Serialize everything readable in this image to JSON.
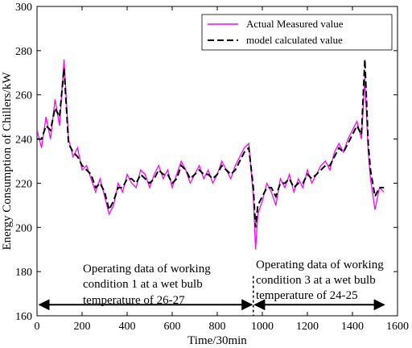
{
  "chart_data": {
    "type": "line",
    "xlabel": "Time/30min",
    "ylabel": "Energy Consumption of Chillers/kW",
    "xlim": [
      0,
      1600
    ],
    "ylim": [
      160,
      300
    ],
    "xticks": [
      0,
      200,
      400,
      600,
      800,
      1000,
      1200,
      1400,
      1600
    ],
    "yticks": [
      160,
      180,
      200,
      220,
      240,
      260,
      280,
      300
    ],
    "legend_position": "top-right",
    "colors": {
      "actual": "#ff00ff",
      "model": "#000000"
    },
    "series": [
      {
        "name": "Actual Measured value",
        "style": "solid",
        "x": [
          0,
          20,
          40,
          60,
          80,
          100,
          120,
          140,
          160,
          180,
          200,
          220,
          240,
          260,
          280,
          300,
          320,
          340,
          360,
          380,
          400,
          420,
          440,
          460,
          480,
          500,
          520,
          540,
          560,
          580,
          600,
          620,
          640,
          660,
          680,
          700,
          720,
          740,
          760,
          780,
          800,
          820,
          840,
          860,
          880,
          900,
          920,
          940,
          960,
          970,
          980,
          1000,
          1020,
          1040,
          1060,
          1080,
          1100,
          1120,
          1140,
          1160,
          1180,
          1200,
          1220,
          1240,
          1260,
          1280,
          1300,
          1320,
          1340,
          1360,
          1380,
          1400,
          1420,
          1440,
          1455,
          1470,
          1480,
          1500,
          1520,
          1540
        ],
        "y": [
          244,
          236,
          250,
          240,
          258,
          246,
          276,
          240,
          232,
          236,
          226,
          228,
          222,
          216,
          222,
          214,
          206,
          210,
          220,
          216,
          224,
          220,
          218,
          226,
          224,
          218,
          224,
          228,
          222,
          226,
          218,
          224,
          230,
          226,
          220,
          224,
          228,
          222,
          226,
          220,
          224,
          230,
          226,
          222,
          228,
          232,
          236,
          238,
          214,
          190,
          206,
          212,
          220,
          216,
          210,
          222,
          218,
          224,
          216,
          222,
          218,
          226,
          220,
          224,
          228,
          230,
          226,
          234,
          238,
          234,
          240,
          244,
          248,
          240,
          268,
          234,
          222,
          208,
          218,
          216
        ]
      },
      {
        "name": "model calculated value",
        "style": "dashed",
        "x": [
          0,
          20,
          40,
          60,
          80,
          100,
          120,
          140,
          160,
          180,
          200,
          220,
          240,
          260,
          280,
          300,
          320,
          340,
          360,
          380,
          400,
          420,
          440,
          460,
          480,
          500,
          520,
          540,
          560,
          580,
          600,
          620,
          640,
          660,
          680,
          700,
          720,
          740,
          760,
          780,
          800,
          820,
          840,
          860,
          880,
          900,
          920,
          940,
          960,
          970,
          980,
          1000,
          1020,
          1040,
          1060,
          1080,
          1100,
          1120,
          1140,
          1160,
          1180,
          1200,
          1220,
          1240,
          1260,
          1280,
          1300,
          1320,
          1340,
          1360,
          1380,
          1400,
          1420,
          1440,
          1455,
          1470,
          1480,
          1500,
          1520,
          1540
        ],
        "y": [
          240,
          240,
          246,
          244,
          254,
          250,
          272,
          238,
          234,
          232,
          228,
          226,
          224,
          218,
          220,
          216,
          208,
          212,
          218,
          218,
          222,
          222,
          220,
          224,
          222,
          220,
          222,
          226,
          224,
          224,
          220,
          222,
          228,
          226,
          222,
          224,
          226,
          224,
          224,
          222,
          224,
          228,
          226,
          224,
          226,
          230,
          234,
          236,
          218,
          200,
          210,
          214,
          218,
          218,
          214,
          220,
          220,
          222,
          218,
          220,
          220,
          224,
          222,
          224,
          226,
          228,
          228,
          232,
          236,
          234,
          238,
          242,
          246,
          242,
          276,
          238,
          226,
          214,
          218,
          218
        ]
      }
    ]
  },
  "annotations": {
    "left_line1": "Operating data of working",
    "left_line2": "condition 1 at a wet bulb",
    "left_line3": "temperature of 26-27",
    "right_line1": "Operating data of working",
    "right_line2": "condition 3 at a wet bulb",
    "right_line3": "temperature of 24-25",
    "divider_x": 960,
    "arrow_y": 165
  }
}
